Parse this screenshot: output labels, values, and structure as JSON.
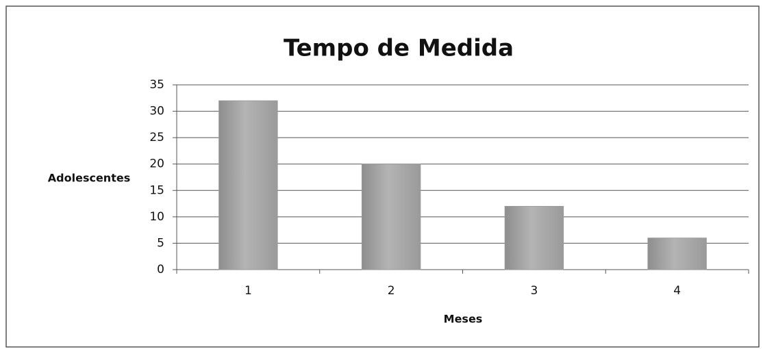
{
  "chart_data": {
    "type": "bar",
    "title": "Tempo de Medida",
    "x_label": "Meses",
    "y_label": "Adolescentes",
    "categories": [
      "1",
      "2",
      "3",
      "4"
    ],
    "values": [
      32,
      20,
      12,
      6
    ],
    "color": "#b4b4b4",
    "ylim": [
      0,
      35
    ],
    "yticks": [
      0,
      5,
      10,
      15,
      20,
      25,
      30,
      35
    ],
    "grid": true
  }
}
